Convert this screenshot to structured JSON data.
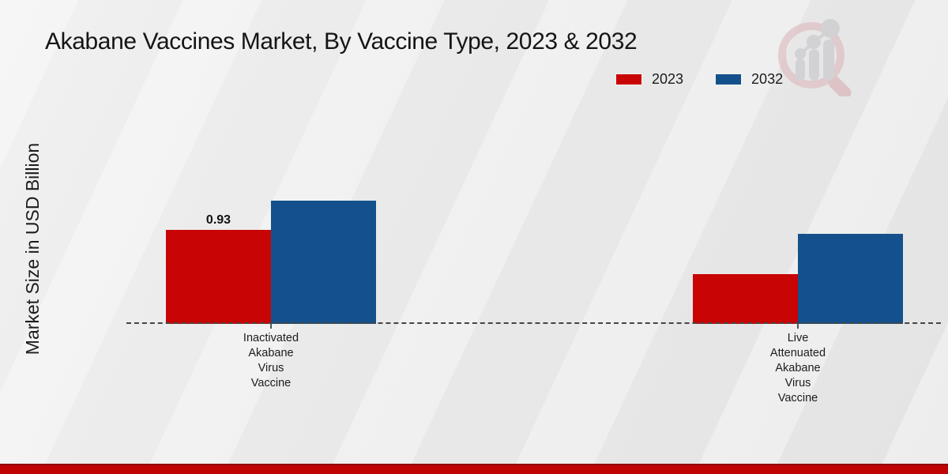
{
  "chart_data": {
    "type": "bar",
    "title": "Akabane Vaccines Market, By Vaccine Type, 2023 & 2032",
    "ylabel": "Market Size in USD Billion",
    "xlabel": "",
    "categories": [
      "Inactivated Akabane Virus Vaccine",
      "Live Attenuated Akabane Virus Vaccine"
    ],
    "series": [
      {
        "name": "2023",
        "color": "#c80404",
        "values": [
          0.93,
          0.49
        ]
      },
      {
        "name": "2032",
        "color": "#14518c",
        "values": [
          1.22,
          0.89
        ]
      }
    ],
    "data_labels": [
      [
        "0.93",
        ""
      ],
      [
        "",
        ""
      ]
    ],
    "ylim": [
      0,
      1.4
    ],
    "grid": false,
    "legend_position": "top-right",
    "axis_style": "dashed-zero-line-only"
  },
  "watermark": {
    "icon": "magnifier-bar-chart-logo"
  },
  "footer": {
    "color": "#c00404",
    "edge_color": "#8e0101"
  },
  "background": {
    "color": "#e9e9e9"
  }
}
